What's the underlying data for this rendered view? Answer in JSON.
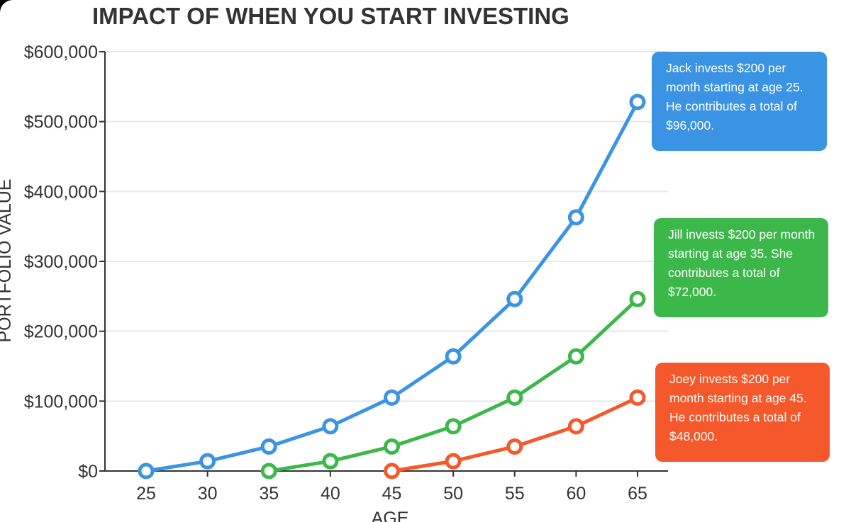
{
  "chart_data": {
    "type": "line",
    "title": "IMPACT OF WHEN YOU START INVESTING",
    "xlabel": "AGE",
    "ylabel": "PORTFOLIO VALUE",
    "x": [
      25,
      30,
      35,
      40,
      45,
      50,
      55,
      60,
      65
    ],
    "x_tick_labels": [
      "25",
      "30",
      "35",
      "40",
      "45",
      "50",
      "55",
      "60",
      "65"
    ],
    "y_tick_values": [
      0,
      100000,
      200000,
      300000,
      400000,
      500000,
      600000
    ],
    "y_tick_labels": [
      "$0",
      "$100,000",
      "$200,000",
      "$300,000",
      "$400,000",
      "$500,000",
      "$600,000"
    ],
    "ylim": [
      0,
      600000
    ],
    "grid": true,
    "series": [
      {
        "key": "jack",
        "color": "#3b94e3",
        "x": [
          25,
          30,
          35,
          40,
          45,
          50,
          55,
          60,
          65
        ],
        "values": [
          0,
          14000,
          35000,
          64000,
          105000,
          164000,
          246000,
          363000,
          528000
        ],
        "annotation": "Jack invests $200 per month starting at age 25. He contributes a total of $96,000."
      },
      {
        "key": "jill",
        "color": "#3cb84a",
        "x": [
          35,
          40,
          45,
          50,
          55,
          60,
          65
        ],
        "values": [
          0,
          14000,
          35000,
          64000,
          105000,
          164000,
          246000
        ],
        "annotation": "Jill invests $200 per month starting at age 35. She contributes a total of $72,000."
      },
      {
        "key": "joey",
        "color": "#f4582b",
        "x": [
          45,
          50,
          55,
          60,
          65
        ],
        "values": [
          0,
          14000,
          35000,
          64000,
          105000
        ],
        "annotation": "Joey invests $200 per month starting at age 45. He contributes a total of $48,000."
      }
    ]
  },
  "colors": {
    "background": "#ffffff",
    "frame": "#000000",
    "text": "#333333",
    "grid": "#e8e8e8",
    "axis": "#333333",
    "jack": "#3b94e3",
    "jill": "#3cb84a",
    "joey": "#f4582b"
  }
}
